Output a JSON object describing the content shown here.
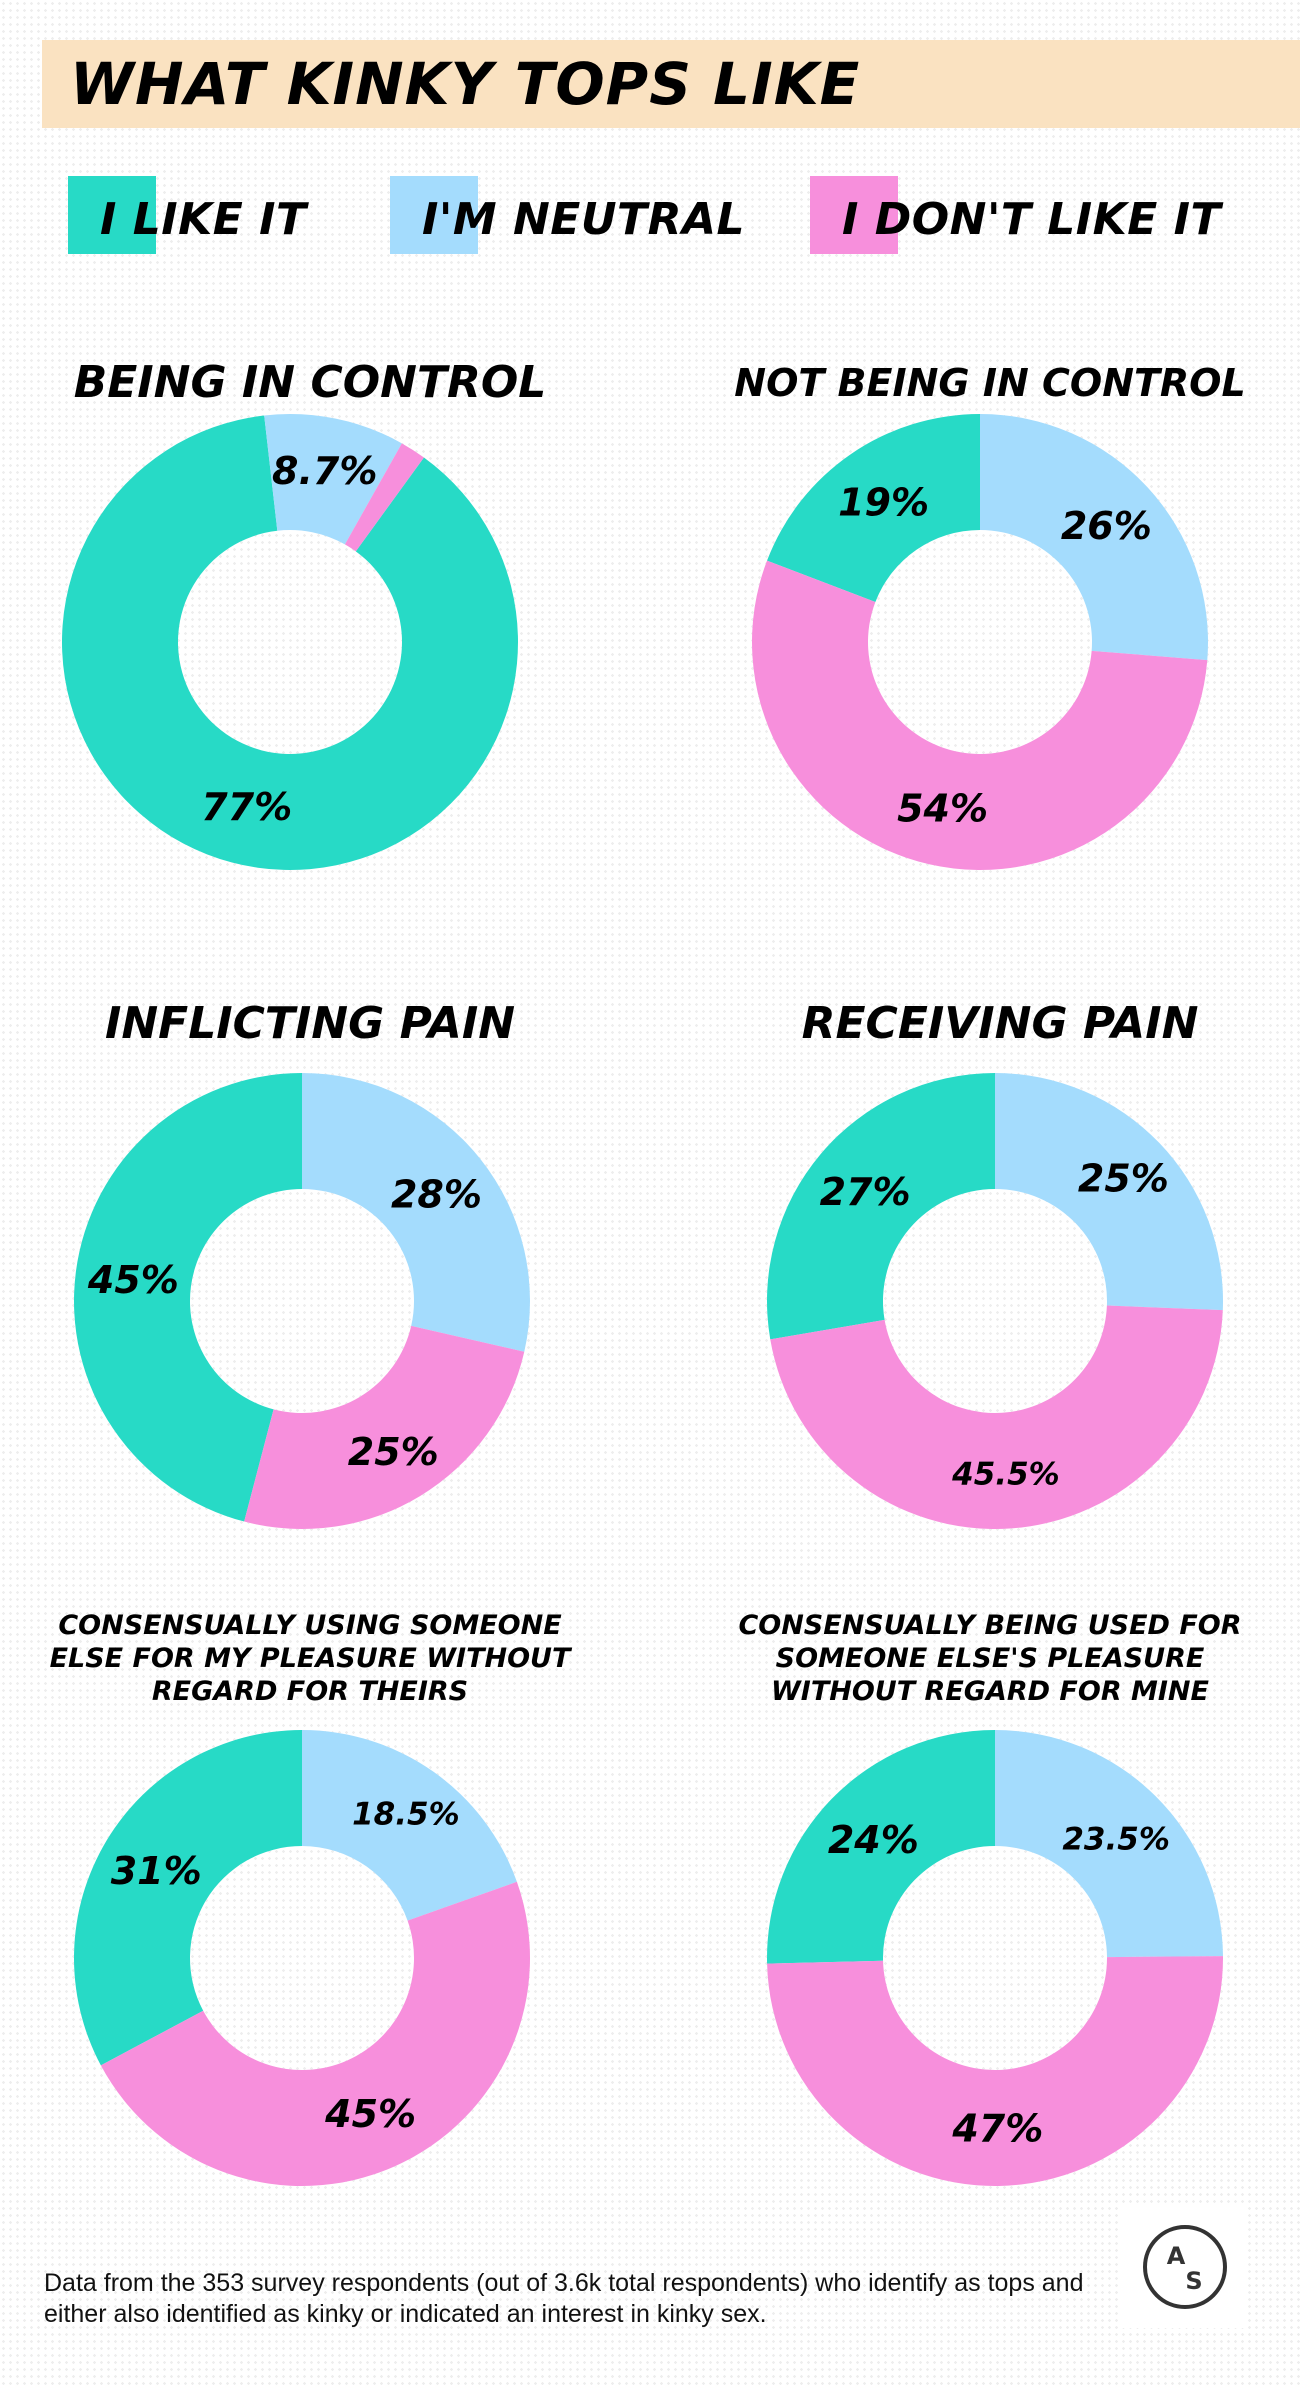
{
  "title": "WHAT KINKY TOPS LIKE",
  "legend": [
    {
      "label": "I LIKE IT",
      "color": "#27dac6"
    },
    {
      "label": "I'M NEUTRAL",
      "color": "#a4dcfd"
    },
    {
      "label": "I DON'T LIKE IT",
      "color": "#f78fdc"
    }
  ],
  "chart_data": [
    {
      "type": "pie",
      "title": "BEING IN CONTROL",
      "categories": [
        "I LIKE IT",
        "I'M NEUTRAL",
        "I DON'T LIKE IT"
      ],
      "values": [
        77,
        8.7,
        1.6
      ],
      "labels": [
        "77%",
        "8.7%",
        ""
      ]
    },
    {
      "type": "pie",
      "title": "NOT BEING IN CONTROL",
      "categories": [
        "I LIKE IT",
        "I'M NEUTRAL",
        "I DON'T LIKE IT"
      ],
      "values": [
        19,
        26,
        54
      ],
      "labels": [
        "19%",
        "26%",
        "54%"
      ]
    },
    {
      "type": "pie",
      "title": "INFLICTING PAIN",
      "categories": [
        "I LIKE IT",
        "I'M NEUTRAL",
        "I DON'T LIKE IT"
      ],
      "values": [
        45,
        28,
        25
      ],
      "labels": [
        "45%",
        "28%",
        "25%"
      ]
    },
    {
      "type": "pie",
      "title": "RECEIVING PAIN",
      "categories": [
        "I LIKE IT",
        "I'M NEUTRAL",
        "I DON'T LIKE IT"
      ],
      "values": [
        27,
        25,
        45.5
      ],
      "labels": [
        "27%",
        "25%",
        "45.5%"
      ]
    },
    {
      "type": "pie",
      "title": "CONSENSUALLY USING SOMEONE ELSE FOR MY PLEASURE WITHOUT REGARD FOR THEIRS",
      "categories": [
        "I LIKE IT",
        "I'M NEUTRAL",
        "I DON'T LIKE IT"
      ],
      "values": [
        31,
        18.5,
        45
      ],
      "labels": [
        "31%",
        "18.5%",
        "45%"
      ]
    },
    {
      "type": "pie",
      "title": "CONSENSUALLY BEING USED FOR SOMEONE ELSE'S PLEASURE WITHOUT REGARD FOR MINE",
      "categories": [
        "I LIKE IT",
        "I'M NEUTRAL",
        "I DON'T LIKE IT"
      ],
      "values": [
        24,
        23.5,
        47
      ],
      "labels": [
        "24%",
        "23.5%",
        "47%"
      ]
    }
  ],
  "footnote": "Data from the 353 survey respondents (out of 3.6k total respondents) who identify as tops and either also identified as kinky or indicated an interest in kinky sex.",
  "logo": {
    "icon": "autostraddle-logo-icon",
    "text": "AS"
  }
}
